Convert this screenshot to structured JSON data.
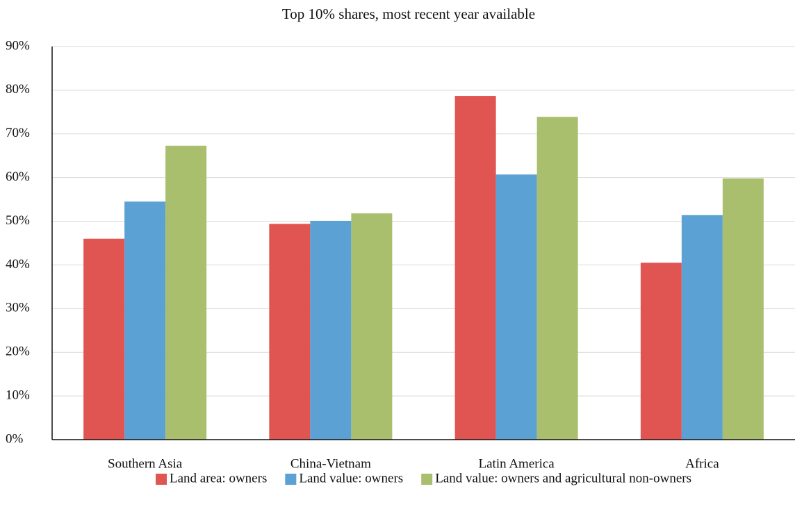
{
  "chart_data": {
    "type": "bar",
    "title": "Top 10% shares, most recent year available",
    "categories": [
      "Southern Asia",
      "China-Vietnam",
      "Latin America",
      "Africa"
    ],
    "series": [
      {
        "name": "Land area: owners",
        "color": "#e05552",
        "values": [
          46,
          49.4,
          78.7,
          40.5
        ]
      },
      {
        "name": "Land value: owners",
        "color": "#5ba1d4",
        "values": [
          54.5,
          50.1,
          60.7,
          51.4
        ]
      },
      {
        "name": "Land value: owners and agricultural non-owners",
        "color": "#a9bf6e",
        "values": [
          67.3,
          51.8,
          73.9,
          59.8
        ]
      }
    ],
    "ylim": [
      0,
      90
    ],
    "yticks": [
      {
        "value": 0,
        "label": "0%"
      },
      {
        "value": 10,
        "label": "10%"
      },
      {
        "value": 20,
        "label": "20%"
      },
      {
        "value": 30,
        "label": "30%"
      },
      {
        "value": 40,
        "label": "40%"
      },
      {
        "value": 50,
        "label": "50%"
      },
      {
        "value": 60,
        "label": "60%"
      },
      {
        "value": 70,
        "label": "70%"
      },
      {
        "value": 80,
        "label": "80%"
      },
      {
        "value": 90,
        "label": "90%"
      }
    ],
    "grid": true,
    "legend": "bottom"
  }
}
